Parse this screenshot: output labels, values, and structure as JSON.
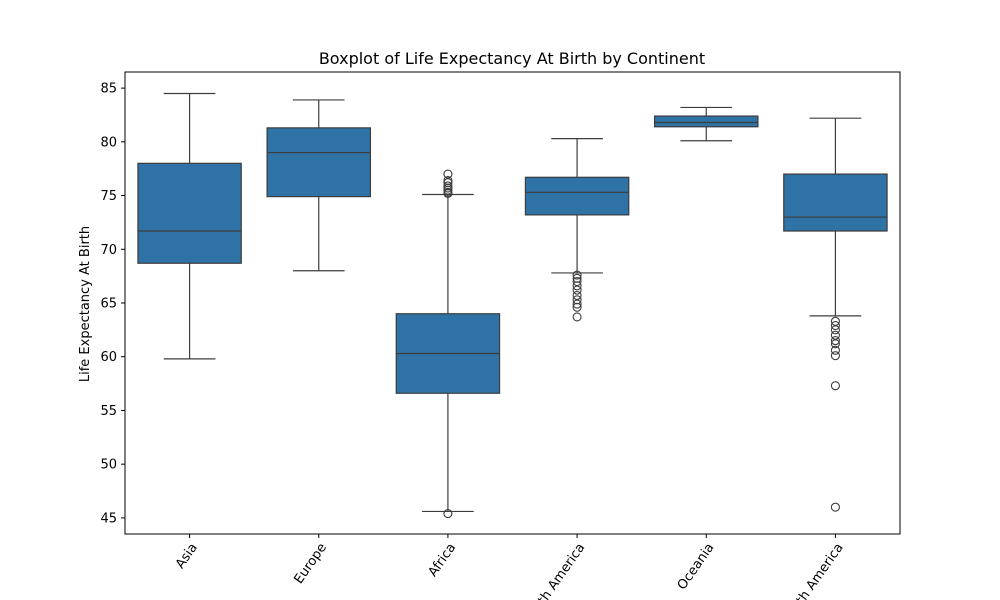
{
  "chart_data": {
    "type": "box",
    "title": "Boxplot of Life Expectancy At Birth by Continent",
    "xlabel": "",
    "ylabel": "Life Expectancy At Birth",
    "ylim": [
      43.5,
      86.5
    ],
    "yticks": [
      45,
      50,
      55,
      60,
      65,
      70,
      75,
      80,
      85
    ],
    "categories": [
      "Asia",
      "Europe",
      "Africa",
      "North America",
      "Oceania",
      "South America"
    ],
    "boxes": [
      {
        "category": "Asia",
        "whisker_low": 59.8,
        "q1": 68.7,
        "median": 71.7,
        "q3": 78.0,
        "whisker_high": 84.5,
        "outliers": []
      },
      {
        "category": "Europe",
        "whisker_low": 68.0,
        "q1": 74.9,
        "median": 79.0,
        "q3": 81.3,
        "whisker_high": 83.9,
        "outliers": []
      },
      {
        "category": "Africa",
        "whisker_low": 45.6,
        "q1": 56.6,
        "median": 60.3,
        "q3": 64.0,
        "whisker_high": 75.1,
        "outliers": [
          45.4,
          75.2,
          75.3,
          75.5,
          75.7,
          75.9,
          76.2,
          76.4,
          77.0
        ]
      },
      {
        "category": "North America",
        "whisker_low": 67.8,
        "q1": 73.2,
        "median": 75.3,
        "q3": 76.7,
        "whisker_high": 80.3,
        "outliers": [
          67.6,
          67.3,
          67.0,
          66.6,
          66.2,
          65.7,
          65.3,
          64.9,
          64.6,
          63.7
        ]
      },
      {
        "category": "Oceania",
        "whisker_low": 80.1,
        "q1": 81.4,
        "median": 81.8,
        "q3": 82.4,
        "whisker_high": 83.2,
        "outliers": []
      },
      {
        "category": "South America",
        "whisker_low": 63.8,
        "q1": 71.7,
        "median": 73.0,
        "q3": 77.0,
        "whisker_high": 82.2,
        "outliers": [
          63.3,
          62.9,
          62.5,
          62.0,
          61.5,
          61.2,
          60.6,
          60.1,
          57.3,
          46.0
        ]
      }
    ],
    "grid": false,
    "colors": {
      "box_fill": "#2e72a6",
      "line": "#3d3d3d",
      "axes": "#000000"
    }
  }
}
